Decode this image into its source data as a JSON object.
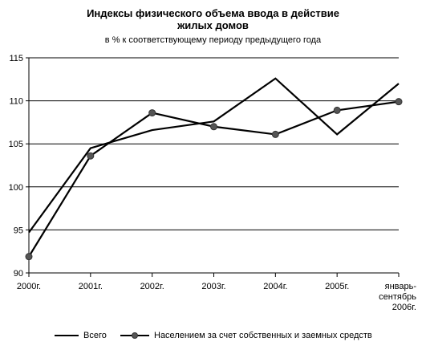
{
  "title_line1": "Индексы физического объема ввода в действие",
  "title_line2": "жилых домов",
  "subtitle": "в % к соответствующему периоду предыдущего года",
  "chart_data": {
    "type": "line",
    "title": "Индексы физического объема ввода в действие жилых домов",
    "subtitle": "в % к соответствующему периоду предыдущего года",
    "categories": [
      "2000г.",
      "2001г.",
      "2002г.",
      "2003г.",
      "2004г.",
      "2005г.",
      [
        "январь-",
        "сентябрь",
        "2006г."
      ]
    ],
    "series": [
      {
        "name": "Всего",
        "values": [
          94.7,
          104.5,
          106.6,
          107.6,
          112.6,
          106.1,
          112.0
        ],
        "marker": "none",
        "color": "#000000"
      },
      {
        "name": "Населением за счет собственных и заемных средств",
        "values": [
          91.9,
          103.6,
          108.6,
          107.0,
          106.1,
          108.9,
          109.9
        ],
        "marker": "circle",
        "color": "#000000",
        "marker_color": "#555555"
      }
    ],
    "ylim": [
      90,
      115
    ],
    "yticks": [
      90,
      95,
      100,
      105,
      110,
      115
    ],
    "grid": true,
    "legend_position": "bottom"
  }
}
